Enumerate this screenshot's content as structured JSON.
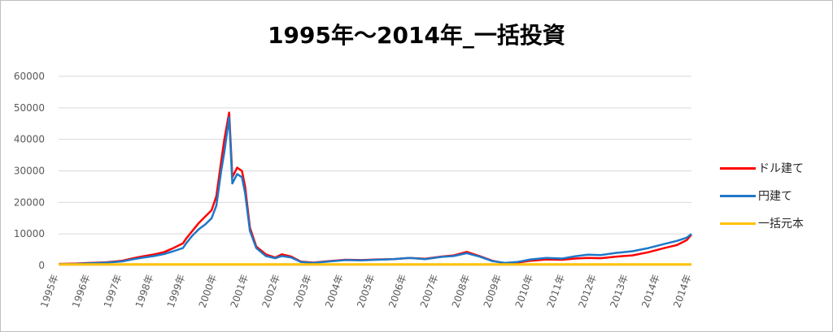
{
  "chart_data": {
    "type": "line",
    "title": "1995年～2014年_一括投資",
    "xlabel": "",
    "ylabel": "",
    "ylim": [
      0,
      60000
    ],
    "yticks": [
      0,
      10000,
      20000,
      30000,
      40000,
      50000,
      60000
    ],
    "xlim": [
      1995,
      2014.0
    ],
    "x_tick_labels": [
      "1995年",
      "1996年",
      "1997年",
      "1998年",
      "1999年",
      "2000年",
      "2001年",
      "2002年",
      "2003年",
      "2004年",
      "2005年",
      "2006年",
      "2007年",
      "2008年",
      "2009年",
      "2010年",
      "2011年",
      "2012年",
      "2013年",
      "2014年",
      "2014年"
    ],
    "grid": "horizontal",
    "legend_position": "right",
    "series": [
      {
        "name": "ドル建て",
        "color": "#ff0000",
        "points": [
          [
            1995.0,
            500
          ],
          [
            1995.5,
            600
          ],
          [
            1996.0,
            800
          ],
          [
            1996.5,
            1000
          ],
          [
            1997.0,
            1500
          ],
          [
            1997.3,
            2200
          ],
          [
            1997.6,
            2800
          ],
          [
            1998.0,
            3500
          ],
          [
            1998.3,
            4200
          ],
          [
            1998.6,
            5500
          ],
          [
            1998.9,
            7000
          ],
          [
            1999.0,
            8500
          ],
          [
            1999.2,
            11000
          ],
          [
            1999.4,
            13500
          ],
          [
            1999.6,
            15500
          ],
          [
            1999.8,
            17500
          ],
          [
            1999.95,
            22000
          ],
          [
            2000.1,
            33000
          ],
          [
            2000.2,
            40000
          ],
          [
            2000.35,
            48500
          ],
          [
            2000.45,
            28000
          ],
          [
            2000.6,
            31000
          ],
          [
            2000.75,
            30000
          ],
          [
            2000.85,
            25000
          ],
          [
            2001.0,
            12000
          ],
          [
            2001.2,
            6000
          ],
          [
            2001.5,
            3500
          ],
          [
            2001.8,
            2500
          ],
          [
            2002.0,
            3500
          ],
          [
            2002.3,
            2800
          ],
          [
            2002.6,
            1200
          ],
          [
            2003.0,
            900
          ],
          [
            2003.5,
            1400
          ],
          [
            2004.0,
            1800
          ],
          [
            2004.5,
            1700
          ],
          [
            2005.0,
            1900
          ],
          [
            2005.5,
            2000
          ],
          [
            2006.0,
            2400
          ],
          [
            2006.5,
            2100
          ],
          [
            2007.0,
            2800
          ],
          [
            2007.4,
            3200
          ],
          [
            2007.8,
            4300
          ],
          [
            2008.2,
            3000
          ],
          [
            2008.6,
            1500
          ],
          [
            2009.0,
            700
          ],
          [
            2009.4,
            900
          ],
          [
            2009.8,
            1500
          ],
          [
            2010.3,
            1900
          ],
          [
            2010.8,
            1800
          ],
          [
            2011.2,
            2200
          ],
          [
            2011.6,
            2400
          ],
          [
            2012.0,
            2300
          ],
          [
            2012.5,
            2800
          ],
          [
            2013.0,
            3200
          ],
          [
            2013.5,
            4200
          ],
          [
            2014.0,
            5500
          ],
          [
            2014.4,
            6500
          ],
          [
            2014.7,
            8000
          ],
          [
            2014.85,
            9800
          ]
        ]
      },
      {
        "name": "円建て",
        "color": "#1f77c7",
        "points": [
          [
            1995.0,
            400
          ],
          [
            1995.5,
            500
          ],
          [
            1996.0,
            700
          ],
          [
            1996.5,
            900
          ],
          [
            1997.0,
            1300
          ],
          [
            1997.3,
            1900
          ],
          [
            1997.6,
            2400
          ],
          [
            1998.0,
            3000
          ],
          [
            1998.3,
            3600
          ],
          [
            1998.6,
            4500
          ],
          [
            1998.9,
            5500
          ],
          [
            1999.0,
            7000
          ],
          [
            1999.2,
            9500
          ],
          [
            1999.4,
            11500
          ],
          [
            1999.6,
            13000
          ],
          [
            1999.8,
            15000
          ],
          [
            1999.95,
            19000
          ],
          [
            2000.1,
            30000
          ],
          [
            2000.2,
            36000
          ],
          [
            2000.35,
            47000
          ],
          [
            2000.45,
            26000
          ],
          [
            2000.6,
            29000
          ],
          [
            2000.75,
            28000
          ],
          [
            2000.85,
            23000
          ],
          [
            2001.0,
            11000
          ],
          [
            2001.2,
            5500
          ],
          [
            2001.5,
            3000
          ],
          [
            2001.8,
            2300
          ],
          [
            2002.0,
            3000
          ],
          [
            2002.3,
            2500
          ],
          [
            2002.6,
            1100
          ],
          [
            2003.0,
            800
          ],
          [
            2003.5,
            1300
          ],
          [
            2004.0,
            1700
          ],
          [
            2004.5,
            1600
          ],
          [
            2005.0,
            1800
          ],
          [
            2005.5,
            2000
          ],
          [
            2006.0,
            2400
          ],
          [
            2006.5,
            2000
          ],
          [
            2007.0,
            2700
          ],
          [
            2007.4,
            3000
          ],
          [
            2007.8,
            3900
          ],
          [
            2008.2,
            2800
          ],
          [
            2008.6,
            1400
          ],
          [
            2009.0,
            800
          ],
          [
            2009.4,
            1100
          ],
          [
            2009.8,
            1900
          ],
          [
            2010.3,
            2400
          ],
          [
            2010.8,
            2200
          ],
          [
            2011.2,
            2900
          ],
          [
            2011.6,
            3400
          ],
          [
            2012.0,
            3300
          ],
          [
            2012.5,
            4000
          ],
          [
            2013.0,
            4500
          ],
          [
            2013.5,
            5500
          ],
          [
            2014.0,
            6800
          ],
          [
            2014.4,
            7800
          ],
          [
            2014.7,
            8800
          ],
          [
            2014.85,
            10000
          ]
        ]
      },
      {
        "name": "一括元本",
        "color": "#ffc000",
        "points": [
          [
            1995.0,
            300
          ],
          [
            2014.85,
            300
          ]
        ]
      }
    ]
  }
}
